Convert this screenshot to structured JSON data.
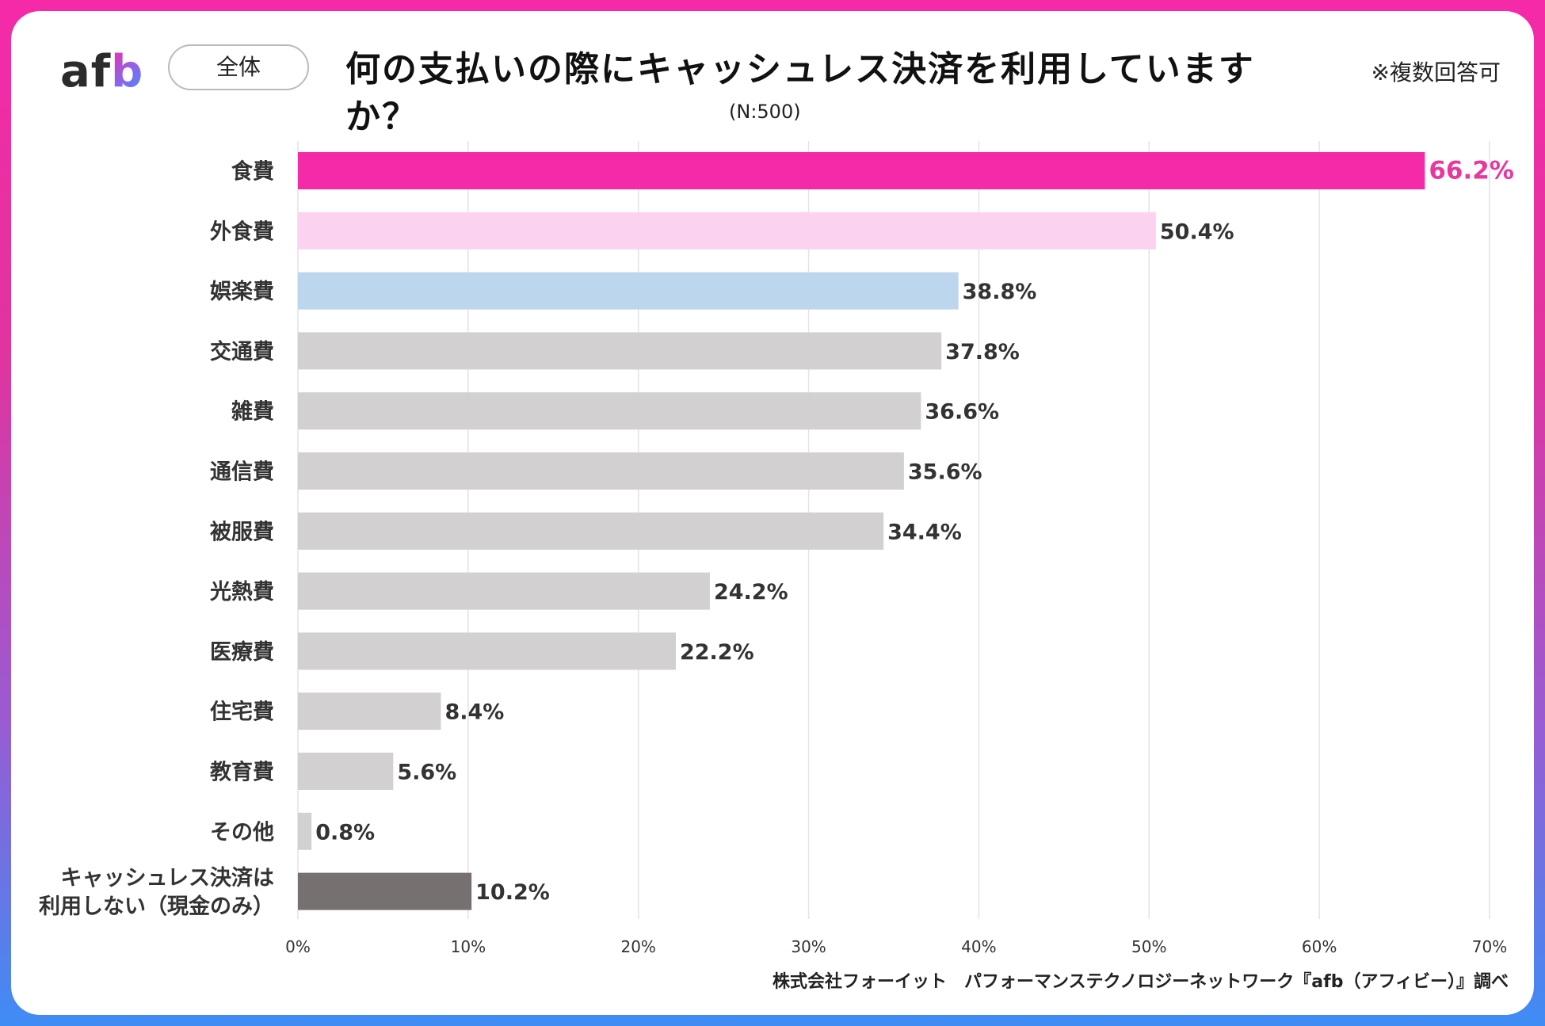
{
  "header": {
    "logo": {
      "text_main": "af",
      "text_accent": "b"
    },
    "scope_label": "全体",
    "title": "何の支払いの際にキャッシュレス決済を利用していますか？",
    "note": "※複数回答可",
    "sample_size": "(N:500)"
  },
  "footer": {
    "source": "株式会社フォーイット　パフォーマンステクノロジーネットワーク『afb（アフィビー）』調べ"
  },
  "colors": {
    "highlight": "#f52aa8",
    "second": "#fbd3f0",
    "third": "#bcd6ee",
    "default": "#d3d0d1",
    "none": "#767070",
    "gridline": "#e4e4e4",
    "label_text": "#333333",
    "value_text": "#333333",
    "value_highlight": "#e8389e"
  },
  "chart_data": {
    "type": "bar",
    "orientation": "horizontal",
    "title": "何の支払いの際にキャッシュレス決済を利用していますか？",
    "xlabel": "",
    "ylabel": "",
    "xlim": [
      0,
      70
    ],
    "grid": true,
    "ticks": [
      0,
      10,
      20,
      30,
      40,
      50,
      60,
      70
    ],
    "tick_labels": [
      "0%",
      "10%",
      "20%",
      "30%",
      "40%",
      "50%",
      "60%",
      "70%"
    ],
    "categories": [
      [
        "食費"
      ],
      [
        "外食費"
      ],
      [
        "娯楽費"
      ],
      [
        "交通費"
      ],
      [
        "雑費"
      ],
      [
        "通信費"
      ],
      [
        "被服費"
      ],
      [
        "光熱費"
      ],
      [
        "医療費"
      ],
      [
        "住宅費"
      ],
      [
        "教育費"
      ],
      [
        "その他"
      ],
      [
        "キャッシュレス決済は",
        "利用しない（現金のみ）"
      ]
    ],
    "values": [
      66.2,
      50.4,
      38.8,
      37.8,
      36.6,
      35.6,
      34.4,
      24.2,
      22.2,
      8.4,
      5.6,
      0.8,
      10.2
    ],
    "value_labels": [
      "66.2%",
      "50.4%",
      "38.8%",
      "37.8%",
      "36.6%",
      "35.6%",
      "34.4%",
      "24.2%",
      "22.2%",
      "8.4%",
      "5.6%",
      "0.8%",
      "10.2%"
    ],
    "color_keys": [
      "highlight",
      "second",
      "third",
      "default",
      "default",
      "default",
      "default",
      "default",
      "default",
      "default",
      "default",
      "default",
      "none"
    ]
  }
}
